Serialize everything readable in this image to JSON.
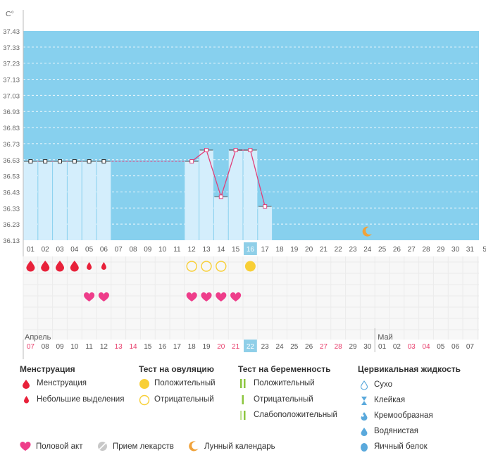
{
  "chart_data": {
    "type": "line",
    "unit": "C°",
    "y_ticks": [
      "37.43",
      "37.33",
      "37.23",
      "37.13",
      "37.03",
      "36.93",
      "36.83",
      "36.73",
      "36.63",
      "36.53",
      "36.43",
      "36.33",
      "36.23",
      "36.13"
    ],
    "ylim": [
      36.13,
      37.43
    ],
    "cycle_days": [
      "01",
      "02",
      "03",
      "04",
      "05",
      "06",
      "07",
      "08",
      "09",
      "10",
      "11",
      "12",
      "13",
      "14",
      "15",
      "16",
      "17",
      "18",
      "19",
      "20",
      "21",
      "22",
      "23",
      "24",
      "25",
      "26",
      "27",
      "28",
      "29",
      "30",
      "31",
      "5"
    ],
    "today_index": 15,
    "temperature": [
      36.62,
      36.62,
      36.62,
      36.62,
      36.62,
      36.62,
      null,
      null,
      null,
      null,
      null,
      36.62,
      36.69,
      36.4,
      36.69,
      36.69,
      36.34
    ],
    "coverline_value": 36.62,
    "coverline_until_index": 11,
    "colors": {
      "background": "#87d0ee",
      "bar": "#d4eefc",
      "line": "#e0407a",
      "today": "#8fcfe8",
      "weekend": "#e8416e"
    },
    "moon_icon_index": 23,
    "months": {
      "april": "Апрель",
      "may": "Май"
    },
    "dates": [
      "07",
      "08",
      "09",
      "10",
      "11",
      "12",
      "13",
      "14",
      "15",
      "16",
      "17",
      "18",
      "19",
      "20",
      "21",
      "22",
      "23",
      "24",
      "25",
      "26",
      "27",
      "28",
      "29",
      "30",
      "01",
      "02",
      "03",
      "04",
      "05",
      "06",
      "07"
    ],
    "weekend_indices": [
      0,
      6,
      7,
      13,
      14,
      20,
      21,
      26,
      27
    ],
    "may_start_index": 24,
    "rows": {
      "menstruation": [
        "big",
        "big",
        "big",
        "big",
        "small",
        "small"
      ],
      "ovulation_tests": [
        null,
        null,
        null,
        null,
        null,
        null,
        null,
        null,
        null,
        null,
        null,
        "negative",
        "negative",
        "negative",
        null,
        "positive"
      ],
      "intercourse_indices": [
        4,
        5,
        11,
        12,
        13,
        14
      ]
    }
  },
  "legend": {
    "menstruation": {
      "title": "Менструация",
      "items": [
        "Менструация",
        "Небольшие выделения"
      ]
    },
    "ovulation": {
      "title": "Тест на овуляцию",
      "items": [
        "Положительный",
        "Отрицательный"
      ]
    },
    "pregnancy": {
      "title": "Тест на беременность",
      "items": [
        "Положительный",
        "Отрицательный",
        "Слабоположительный"
      ]
    },
    "cervical": {
      "title": "Цервикальная жидкость",
      "items": [
        "Сухо",
        "Клейкая",
        "Кремообразная",
        "Водянистая",
        "Яичный белок"
      ]
    },
    "bottom": [
      "Половой акт",
      "Прием лекарств",
      "Лунный календарь"
    ]
  }
}
